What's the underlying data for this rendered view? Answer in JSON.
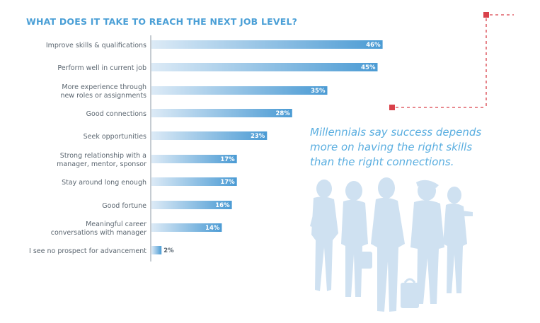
{
  "chart_data": {
    "type": "bar",
    "orientation": "horizontal",
    "title": "WHAT DOES IT TAKE TO REACH THE NEXT JOB LEVEL?",
    "unit": "%",
    "categories": [
      [
        "Improve skills & qualifications"
      ],
      [
        "Perform well in current job"
      ],
      [
        "More experience through",
        "new roles or assignments"
      ],
      [
        "Good connections"
      ],
      [
        "Seek opportunities"
      ],
      [
        "Strong relationship with a",
        "manager, mentor, sponsor"
      ],
      [
        "Stay around long enough"
      ],
      [
        "Good fortune"
      ],
      [
        "Meaningful career",
        "conversations with manager"
      ],
      [
        "I see no prospect for advancement"
      ]
    ],
    "values": [
      46,
      45,
      35,
      28,
      23,
      17,
      17,
      16,
      14,
      2
    ],
    "value_labels": [
      "46%",
      "45%",
      "35%",
      "28%",
      "23%",
      "17%",
      "17%",
      "16%",
      "14%",
      "2%"
    ],
    "colors": {
      "bar_start": "#dceaf6",
      "bar_end": "#4b9bd4",
      "accent": "#d9414a",
      "title": "#4a9fd6"
    }
  },
  "quote": {
    "lines": [
      "Millennials say success depends",
      "more on having the right skills",
      "than the right connections."
    ]
  },
  "illustration": {
    "name": "people-silhouettes",
    "color": "#cfe1f1"
  }
}
